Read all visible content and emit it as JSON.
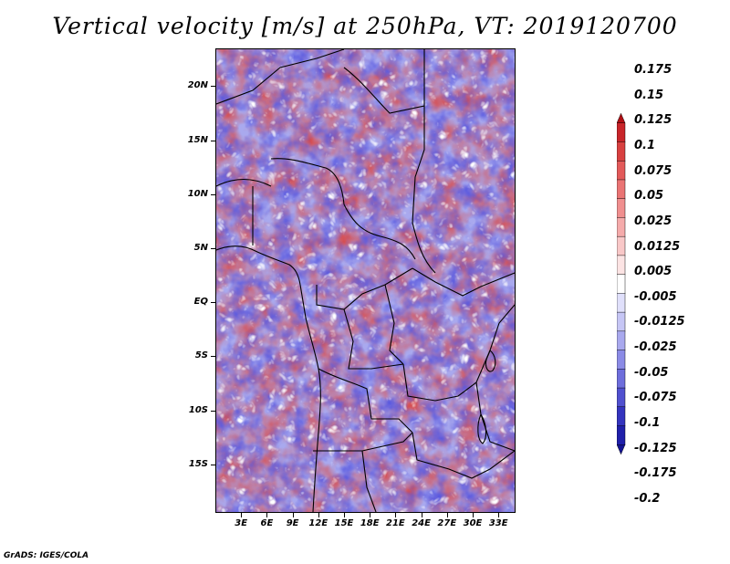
{
  "title": "Vertical velocity [m/s] at 250hPa, VT: 2019120700",
  "footer": "GrADS: IGES/COLA",
  "map": {
    "lat_ticks": [
      "20N",
      "15N",
      "10N",
      "5N",
      "EQ",
      "5S",
      "10S",
      "15S"
    ],
    "lon_ticks": [
      "3E",
      "6E",
      "9E",
      "12E",
      "15E",
      "18E",
      "21E",
      "24E",
      "27E",
      "30E",
      "33E"
    ],
    "lat_range": [
      -19.5,
      23.5
    ],
    "lon_range": [
      0,
      35
    ]
  },
  "colorbar": {
    "labels": [
      "0.175",
      "0.15",
      "0.125",
      "0.1",
      "0.075",
      "0.05",
      "0.025",
      "0.0125",
      "0.005",
      "-0.005",
      "-0.0125",
      "-0.025",
      "-0.05",
      "-0.075",
      "-0.1",
      "-0.125",
      "-0.175",
      "-0.2"
    ],
    "colors": [
      "#b00f14",
      "#c8252a",
      "#d84040",
      "#e35a5a",
      "#ea7474",
      "#f08f8f",
      "#f5abab",
      "#f9c8c8",
      "#fce4e4",
      "#ffffff",
      "#e0e0fb",
      "#c6c6f5",
      "#a9a9ee",
      "#8b8be6",
      "#6e6edc",
      "#5050cf",
      "#3434be",
      "#2020aa",
      "#141494"
    ]
  }
}
